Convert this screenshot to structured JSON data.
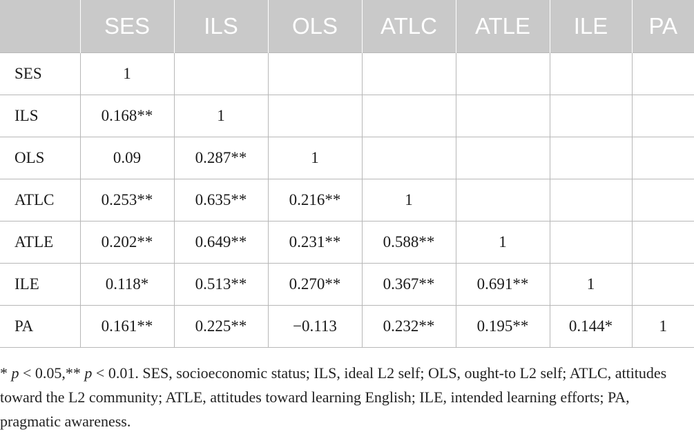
{
  "table": {
    "headers": [
      "",
      "SES",
      "ILS",
      "OLS",
      "ATLC",
      "ATLE",
      "ILE",
      "PA"
    ],
    "rows": [
      {
        "label": "SES",
        "cells": [
          "1",
          "",
          "",
          "",
          "",
          "",
          ""
        ]
      },
      {
        "label": "ILS",
        "cells": [
          "0.168**",
          "1",
          "",
          "",
          "",
          "",
          ""
        ]
      },
      {
        "label": "OLS",
        "cells": [
          "0.09",
          "0.287**",
          "1",
          "",
          "",
          "",
          ""
        ]
      },
      {
        "label": "ATLC",
        "cells": [
          "0.253**",
          "0.635**",
          "0.216**",
          "1",
          "",
          "",
          ""
        ]
      },
      {
        "label": "ATLE",
        "cells": [
          "0.202**",
          "0.649**",
          "0.231**",
          "0.588**",
          "1",
          "",
          ""
        ]
      },
      {
        "label": "ILE",
        "cells": [
          "0.118*",
          "0.513**",
          "0.270**",
          "0.367**",
          "0.691**",
          "1",
          ""
        ]
      },
      {
        "label": "PA",
        "cells": [
          "0.161**",
          "0.225**",
          "−0.113",
          "0.232**",
          "0.195**",
          "0.144*",
          "1"
        ]
      }
    ]
  },
  "footnote": {
    "sig1_prefix": "* ",
    "p1": "p",
    "sig1_text": " < 0.05,** ",
    "p2": "p",
    "sig2_text": " < 0.01. SES, socioeconomic status; ILS, ideal L2 self; OLS, ought-to L2 self; ATLC, attitudes toward the L2 community; ATLE, attitudes toward learning English; ILE, intended learning efforts; PA, pragmatic awareness."
  },
  "colors": {
    "header_bg": "#c9c9c9",
    "header_text": "#ffffff",
    "grid": "#b7b7b7"
  }
}
